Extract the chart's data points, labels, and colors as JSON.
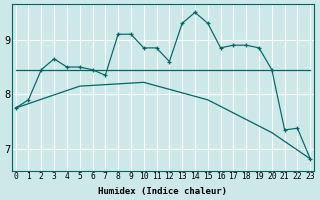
{
  "xlabel": "Humidex (Indice chaleur)",
  "bg_color": "#cce8e8",
  "line_color": "#006666",
  "grid_color": "#ffffff",
  "x_ticks": [
    0,
    1,
    2,
    3,
    4,
    5,
    6,
    7,
    8,
    9,
    10,
    11,
    12,
    13,
    14,
    15,
    16,
    17,
    18,
    19,
    20,
    21,
    22,
    23
  ],
  "y_ticks": [
    7,
    8,
    9
  ],
  "ylim": [
    6.6,
    9.65
  ],
  "xlim": [
    -0.3,
    23.3
  ],
  "series_zigzag_x": [
    0,
    1,
    2,
    3,
    4,
    5,
    6,
    7,
    8,
    9,
    10,
    11,
    12,
    13,
    14,
    15,
    16,
    17,
    18,
    19,
    20,
    21,
    22,
    23
  ],
  "series_zigzag_y": [
    7.75,
    7.9,
    8.45,
    8.65,
    8.5,
    8.5,
    8.45,
    8.35,
    9.1,
    9.1,
    8.85,
    8.85,
    8.6,
    9.3,
    9.5,
    9.3,
    8.85,
    8.9,
    8.9,
    8.85,
    8.45,
    7.35,
    7.38,
    6.82
  ],
  "series_flat_x": [
    0,
    20,
    21,
    22,
    23
  ],
  "series_flat_y": [
    8.45,
    8.45,
    8.45,
    8.45,
    8.45
  ],
  "series_diag_x": [
    0,
    5,
    10,
    15,
    20,
    23
  ],
  "series_diag_y": [
    7.75,
    8.15,
    8.22,
    7.9,
    7.3,
    6.82
  ]
}
